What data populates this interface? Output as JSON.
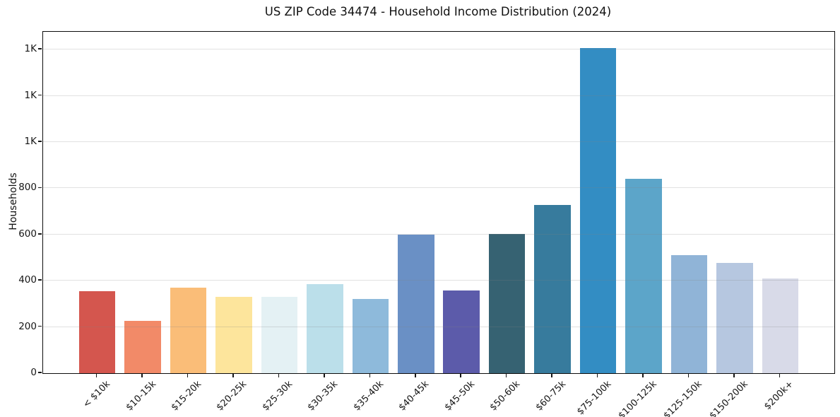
{
  "chart_data": {
    "type": "bar",
    "title": "US ZIP Code 34474 - Household Income Distribution (2024)",
    "xlabel": "",
    "ylabel": "Households",
    "categories": [
      "< $10k",
      "$10-15k",
      "$15-20k",
      "$20-25k",
      "$25-30k",
      "$30-35k",
      "$35-40k",
      "$40-45k",
      "$45-50k",
      "$50-60k",
      "$60-75k",
      "$75-100k",
      "$100-125k",
      "$125-150k",
      "$150-200k",
      "$200k+"
    ],
    "values": [
      355,
      225,
      370,
      330,
      330,
      385,
      322,
      600,
      357,
      603,
      727,
      1407,
      840,
      510,
      478,
      410
    ],
    "bar_colors": [
      "#d4564e",
      "#f28a68",
      "#fabd78",
      "#fde59c",
      "#e4f1f4",
      "#bbdfea",
      "#8ebadb",
      "#6a90c5",
      "#5c5baa",
      "#366272",
      "#377b9d",
      "#338dc3",
      "#5ca5c9",
      "#90b4d7",
      "#b6c7e0",
      "#d8dae8"
    ],
    "ylim": [
      0,
      1477
    ],
    "yticks": [
      {
        "value": 0,
        "label": "0"
      },
      {
        "value": 200,
        "label": "200"
      },
      {
        "value": 400,
        "label": "400"
      },
      {
        "value": 600,
        "label": "600"
      },
      {
        "value": 800,
        "label": "800"
      },
      {
        "value": 1000,
        "label": "1K"
      },
      {
        "value": 1200,
        "label": "1K"
      },
      {
        "value": 1400,
        "label": "1K"
      }
    ],
    "grid": "horizontal",
    "legend": "none"
  }
}
